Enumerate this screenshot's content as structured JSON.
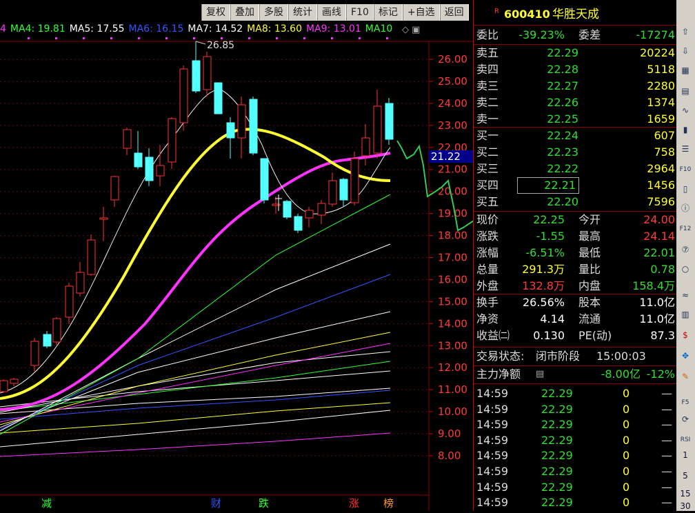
{
  "toolbar": [
    "复权",
    "叠加",
    "多股",
    "统计",
    "画线",
    "F10",
    "标记",
    "+自选",
    "返回"
  ],
  "ma_legend": [
    {
      "text": "4",
      "color": "#ff33ff"
    },
    {
      "text": "MA4: 19.81",
      "color": "#33ff33"
    },
    {
      "text": "MA5: 17.55",
      "color": "#ffffff"
    },
    {
      "text": "MA6: 16.15",
      "color": "#3355ff"
    },
    {
      "text": "MA7: 14.52",
      "color": "#ffffff"
    },
    {
      "text": "MA8: 13.60",
      "color": "#ffff33"
    },
    {
      "text": "MA9: 13.01",
      "color": "#ff33ff"
    },
    {
      "text": "MA10",
      "color": "#33ff33"
    }
  ],
  "chart_data": {
    "type": "candlestick",
    "high_label": "26.85",
    "current_price_label": "21.22",
    "y_ticks": [
      "26.00",
      "25.00",
      "24.00",
      "23.00",
      "22.00",
      "21.00",
      "20.00",
      "19.00",
      "18.00",
      "17.00",
      "16.00",
      "15.00",
      "14.00",
      "13.00",
      "12.00",
      "11.00",
      "10.00",
      "9.00",
      "8.00"
    ],
    "markers": [
      {
        "text": "减",
        "color": "#33ff33"
      },
      {
        "text": "财",
        "color": "#3355ff"
      },
      {
        "text": "跌",
        "color": "#33ff33"
      },
      {
        "text": "涨",
        "color": "#ff3333"
      },
      {
        "text": "榜",
        "color": "#ff9933"
      }
    ]
  },
  "stock": {
    "flag": "R",
    "code": "600410",
    "name": "华胜天成"
  },
  "wei": {
    "label1": "委比",
    "value1": "-39.23%",
    "label2": "委差",
    "value2": "-17274"
  },
  "sell": [
    {
      "label": "卖五",
      "price": "22.29",
      "vol": "20224"
    },
    {
      "label": "卖四",
      "price": "22.28",
      "vol": "5118"
    },
    {
      "label": "卖三",
      "price": "22.27",
      "vol": "2280"
    },
    {
      "label": "卖二",
      "price": "22.26",
      "vol": "1374"
    },
    {
      "label": "卖一",
      "price": "22.25",
      "vol": "1659"
    }
  ],
  "buy": [
    {
      "label": "买一",
      "price": "22.24",
      "vol": "607"
    },
    {
      "label": "买二",
      "price": "22.23",
      "vol": "758"
    },
    {
      "label": "买三",
      "price": "22.22",
      "vol": "2964"
    },
    {
      "label": "买四",
      "price": "22.21",
      "vol": "1456"
    },
    {
      "label": "买五",
      "price": "22.20",
      "vol": "7596"
    }
  ],
  "quote": [
    {
      "l1": "现价",
      "v1": "22.25",
      "l2": "今开",
      "v2": "24.00",
      "c1": "green",
      "c2": "red"
    },
    {
      "l1": "涨跌",
      "v1": "-1.55",
      "l2": "最高",
      "v2": "24.14",
      "c1": "green",
      "c2": "red"
    },
    {
      "l1": "涨幅",
      "v1": "-6.51%",
      "l2": "最低",
      "v2": "22.01",
      "c1": "green",
      "c2": "green"
    },
    {
      "l1": "总量",
      "v1": "291.3万",
      "l2": "量比",
      "v2": "0.78",
      "c1": "yellow",
      "c2": "green"
    },
    {
      "l1": "外盘",
      "v1": "132.8万",
      "l2": "内盘",
      "v2": "158.4万",
      "c1": "red",
      "c2": "green"
    }
  ],
  "fund": [
    {
      "l1": "换手",
      "v1": "26.56%",
      "l2": "股本",
      "v2": "11.0亿"
    },
    {
      "l1": "净资",
      "v1": "4.14",
      "l2": "流通",
      "v2": "11.0亿"
    },
    {
      "l1": "收益㈡",
      "v1": "0.130",
      "l2": "PE(动)",
      "v2": "87.3"
    }
  ],
  "status": {
    "label": "交易状态:",
    "value": "闭市阶段",
    "time": "15:00:03"
  },
  "main_flow": {
    "label": "主力净额",
    "value": "-8.00亿",
    "pct": "-12%"
  },
  "ticks": [
    {
      "time": "14:59",
      "price": "22.29",
      "vol": "0",
      "dir": "—"
    },
    {
      "time": "14:59",
      "price": "22.29",
      "vol": "0",
      "dir": "—"
    },
    {
      "time": "14:59",
      "price": "22.29",
      "vol": "0",
      "dir": "—"
    },
    {
      "time": "14:59",
      "price": "22.29",
      "vol": "0",
      "dir": "—"
    },
    {
      "time": "14:59",
      "price": "22.29",
      "vol": "0",
      "dir": "—"
    },
    {
      "time": "14:59",
      "price": "22.29",
      "vol": "0",
      "dir": "—"
    },
    {
      "time": "14:59",
      "price": "22.29",
      "vol": "0",
      "dir": "—"
    },
    {
      "time": "14:59",
      "price": "22.29",
      "vol": "0",
      "dir": "—"
    }
  ],
  "side_icons": [
    "up-arrow-icon",
    "down-arrow-icon",
    "report-icon",
    "grid-icon",
    "line-chart-icon",
    "kline-icon",
    "list-icon",
    "f10-icon",
    "text-icon",
    "info-icon",
    "f12-icon",
    "seven-icon",
    "circle-icon",
    "wave-icon",
    "chart-icon",
    "dollar-icon",
    "move-icon",
    "pencil-icon",
    "f5-icon",
    "refresh-icon",
    "rsi-icon"
  ],
  "side_labels": [
    "1",
    "5",
    "15",
    "30"
  ]
}
